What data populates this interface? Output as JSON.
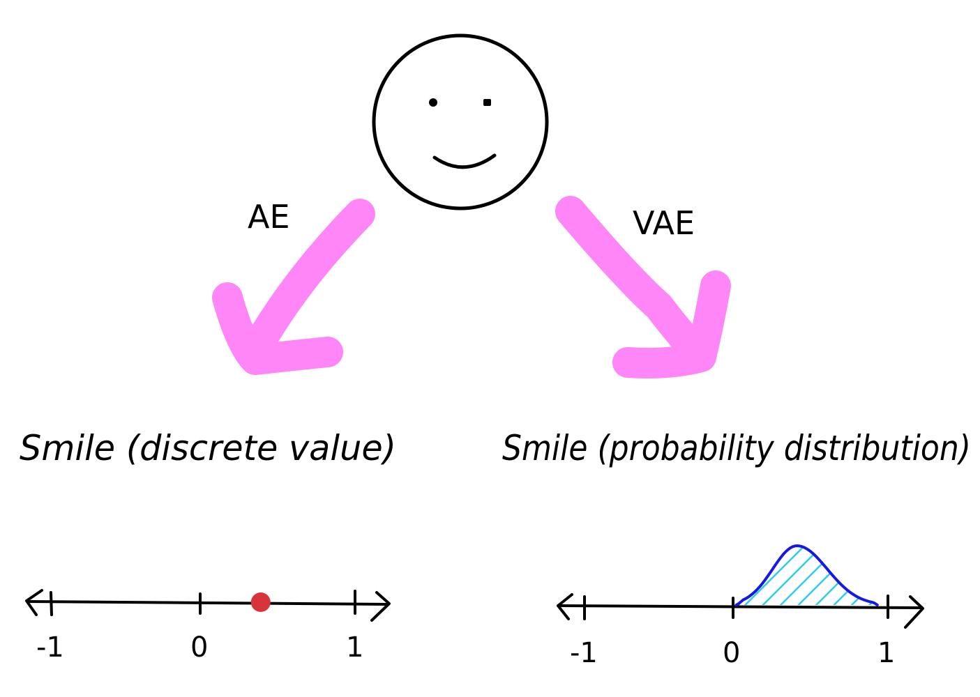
{
  "colors": {
    "arrow": "#ff86f7",
    "ink": "#000000",
    "point": "#d9343c",
    "curve": "#1717e6",
    "hatch": "#2ccde8"
  },
  "arrows": {
    "left_label": "AE",
    "right_label": "VAE"
  },
  "captions": {
    "left": "Smile (discrete value)",
    "right": "Smile (probability distribution)"
  },
  "left_axis": {
    "tick_labels": [
      "-1",
      "0",
      "1"
    ],
    "point_value": 0.38
  },
  "right_axis": {
    "tick_labels": [
      "-1",
      "0",
      "1"
    ],
    "distribution_range": [
      0,
      0.93
    ],
    "distribution_peak": 0.4
  },
  "icons": {
    "face": "smiley-face-icon"
  }
}
